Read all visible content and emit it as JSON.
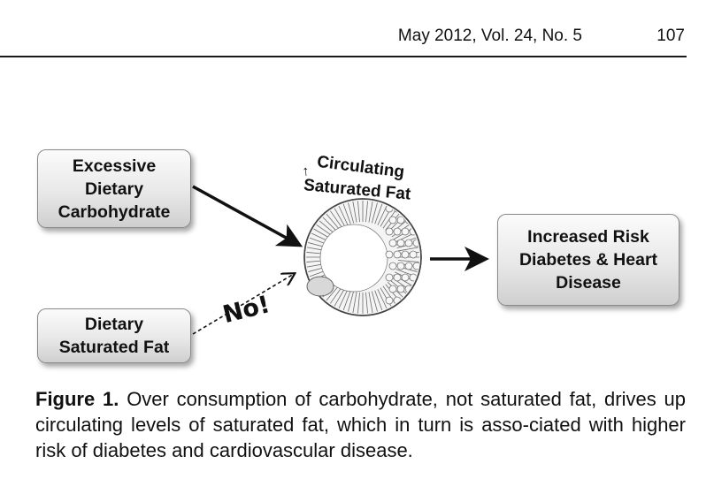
{
  "header": {
    "journal_issue": "May 2012, Vol. 24, No. 5",
    "page_number": "107"
  },
  "diagram": {
    "box_carbohydrate": "Excessive\nDietary\nCarbohydrate",
    "box_saturated_fat": "Dietary\nSaturated Fat",
    "box_outcome": "Increased Risk\nDiabetes & Heart\nDisease",
    "center_arrow_symbol": "↑",
    "center_label_line1": "Circulating",
    "center_label_line2": "Saturated Fat",
    "no_label": "No!"
  },
  "caption": {
    "label": "Figure 1.",
    "text": " Over consumption of carbohydrate, not saturated fat, drives up circulating levels of saturated fat, which in turn is asso-ciated with higher risk of diabetes and cardiovascular disease."
  }
}
